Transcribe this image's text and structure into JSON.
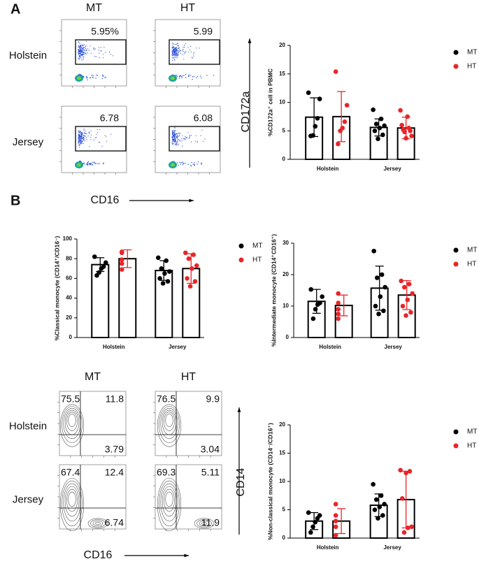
{
  "flow_panels": [
    {
      "label": "A",
      "columns": [
        "MT",
        "HT"
      ],
      "rows": [
        "Holstein",
        "Jersey"
      ],
      "x_label": "CD16",
      "y_label": "CD172a",
      "gates": [
        [
          "5.95%",
          "5.99"
        ],
        [
          "6.78",
          "6.08"
        ]
      ]
    },
    {
      "label": "B",
      "columns": [
        "MT",
        "HT"
      ],
      "rows": [
        "Holstein",
        "Jersey"
      ],
      "x_label": "CD16",
      "y_label": "CD14",
      "quadrants": [
        [
          [
            "75.5",
            "11.8",
            "3.79"
          ],
          [
            "76.5",
            "9.9",
            "3.04"
          ]
        ],
        [
          [
            "67.4",
            "12.4",
            "6.74"
          ],
          [
            "69.3",
            "5.11",
            "11.9"
          ]
        ]
      ]
    }
  ],
  "chart_data": [
    {
      "type": "bar",
      "ylabel": "%CD172a⁺ cell in PBMC",
      "categories": [
        "Holstein",
        "Jersey"
      ],
      "ylim": [
        0,
        20
      ],
      "yticks": [
        0,
        5,
        10,
        15,
        20
      ],
      "series": [
        {
          "name": "MT",
          "color": "#000000",
          "values": [
            7.4,
            5.6
          ],
          "errors": [
            3.4,
            1.5
          ],
          "points": [
            [
              11.7,
              10.6,
              7.2,
              5.8,
              4.2,
              4.1
            ],
            [
              8.7,
              7.1,
              6.2,
              5.9,
              5.5,
              5.0,
              4.3,
              3.6
            ]
          ]
        },
        {
          "name": "HT",
          "color": "#e8252a",
          "values": [
            7.5,
            5.5
          ],
          "errors": [
            4.4,
            1.9
          ],
          "points": [
            [
              15.4,
              9.5,
              6.6,
              5.5,
              5.0,
              2.7
            ],
            [
              8.6,
              7.5,
              6.0,
              5.5,
              5.2,
              5.0,
              4.8,
              4.1,
              3.7
            ]
          ]
        }
      ]
    },
    {
      "type": "bar",
      "ylabel": "%Classical monocyte (CD14⁺/CD16⁻)",
      "categories": [
        "Holstein",
        "Jersey"
      ],
      "ylim": [
        0,
        100
      ],
      "yticks": [
        0,
        20,
        40,
        60,
        80,
        100
      ],
      "series": [
        {
          "name": "MT",
          "color": "#000000",
          "values": [
            74,
            68
          ],
          "errors": [
            7,
            10
          ],
          "points": [
            [
              82,
              76,
              72,
              70,
              66,
              63
            ],
            [
              81,
              78,
              70,
              67,
              65,
              60,
              57,
              55
            ]
          ]
        },
        {
          "name": "HT",
          "color": "#e8252a",
          "values": [
            80,
            70
          ],
          "errors": [
            9,
            15
          ],
          "points": [
            [
              87,
              86,
              79,
              75,
              69
            ],
            [
              86,
              84,
              80,
              73,
              70,
              60,
              57,
              52
            ]
          ]
        }
      ]
    },
    {
      "type": "bar",
      "ylabel": "%Intermediate monocyte (CD14⁺CD16⁺)",
      "categories": [
        "Holstein",
        "Jersey"
      ],
      "ylim": [
        0,
        30
      ],
      "yticks": [
        0,
        10,
        20,
        30
      ],
      "series": [
        {
          "name": "MT",
          "color": "#000000",
          "values": [
            11.5,
            15.7
          ],
          "errors": [
            3.8,
            7
          ],
          "points": [
            [
              15.3,
              13,
              11,
              10.5,
              9,
              6
            ],
            [
              27.5,
              20,
              19,
              16,
              13,
              10,
              8.5,
              7.5
            ]
          ]
        },
        {
          "name": "HT",
          "color": "#e8252a",
          "values": [
            10.2,
            13.5
          ],
          "errors": [
            3.3,
            4.6
          ],
          "points": [
            [
              14,
              11,
              9,
              7.5,
              6
            ],
            [
              18,
              17,
              16,
              14,
              12,
              10,
              8,
              7
            ]
          ]
        }
      ]
    },
    {
      "type": "bar",
      "ylabel": "%Non-classical monocyte (CD14⁻/CD16⁺)",
      "categories": [
        "Holstein",
        "Jersey"
      ],
      "ylim": [
        0,
        20
      ],
      "yticks": [
        0,
        5,
        10,
        15,
        20
      ],
      "series": [
        {
          "name": "MT",
          "color": "#000000",
          "values": [
            3.0,
            5.8
          ],
          "errors": [
            1.5,
            2
          ],
          "points": [
            [
              4.5,
              4.0,
              3.5,
              2.8,
              2.0,
              1.0
            ],
            [
              9.5,
              7.5,
              6.8,
              6.0,
              5.5,
              5.0,
              4.0,
              3.5
            ]
          ]
        },
        {
          "name": "HT",
          "color": "#e8252a",
          "values": [
            3.0,
            6.8
          ],
          "errors": [
            2.2,
            5
          ],
          "points": [
            [
              6.0,
              4.0,
              3.0,
              2.0,
              0.5
            ],
            [
              12,
              11.8,
              11.5,
              7.0,
              2.0,
              1.8,
              1.0
            ]
          ]
        }
      ]
    }
  ]
}
